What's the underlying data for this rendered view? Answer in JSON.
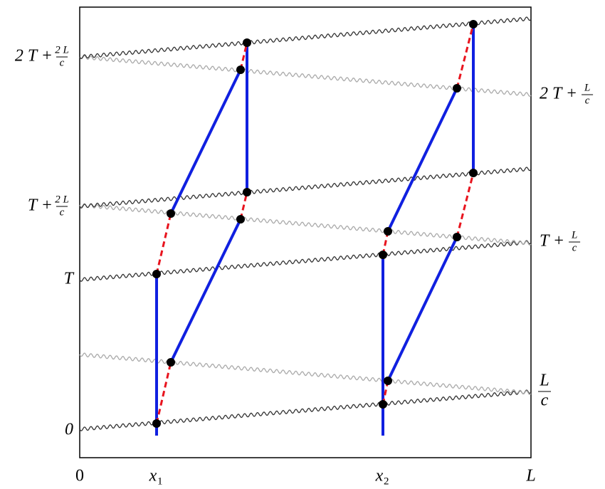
{
  "bottom_labels": [
    {
      "base": "0"
    },
    {
      "base": "x",
      "sub": "1"
    },
    {
      "base": "x",
      "sub": "2"
    },
    {
      "base": "L"
    }
  ],
  "left_labels": [
    {
      "prefix": "2 T +",
      "num": "2 L",
      "den": "c"
    },
    {
      "prefix": "T +",
      "num": "2 L",
      "den": "c"
    },
    {
      "prefix": "T"
    },
    {
      "prefix": "0"
    }
  ],
  "right_labels": [
    {
      "prefix": "2 T +",
      "num": "L",
      "den": "c"
    },
    {
      "prefix": "T +",
      "num": "L",
      "den": "c"
    },
    {
      "num": "L",
      "den": "c"
    }
  ]
}
